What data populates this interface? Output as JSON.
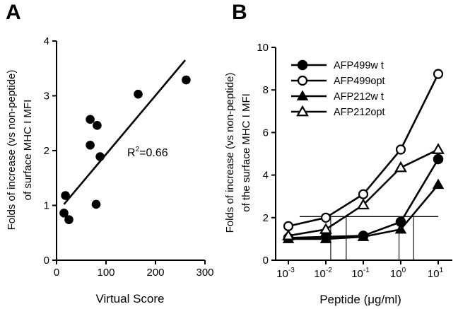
{
  "chart_data": [
    {
      "panel": "A",
      "type": "scatter",
      "xlabel": "Virtual Score",
      "ylabel_lines": [
        "Folds of increase (vs non-peptide)",
        "of surface MHC I MFI"
      ],
      "xlim": [
        0,
        300
      ],
      "ylim": [
        0,
        4
      ],
      "xticks": [
        "0",
        "100",
        "200",
        "300"
      ],
      "yticks": [
        "0",
        "1",
        "2",
        "3",
        "4"
      ],
      "points": [
        {
          "x": 15,
          "y": 0.86
        },
        {
          "x": 18,
          "y": 1.18
        },
        {
          "x": 25,
          "y": 0.74
        },
        {
          "x": 68,
          "y": 2.57
        },
        {
          "x": 68,
          "y": 2.1
        },
        {
          "x": 80,
          "y": 1.02
        },
        {
          "x": 82,
          "y": 2.46
        },
        {
          "x": 88,
          "y": 1.89
        },
        {
          "x": 165,
          "y": 3.03
        },
        {
          "x": 262,
          "y": 3.29
        }
      ],
      "fit_line": {
        "x": [
          15,
          260
        ],
        "y": [
          1.02,
          3.65
        ]
      },
      "annotation": {
        "text": "R",
        "sup": "2",
        "rest": "=0.66"
      }
    },
    {
      "panel": "B",
      "type": "line",
      "xlabel_prefix": "Peptide (",
      "xlabel_mu": "μ",
      "xlabel_suffix": "g/ml)",
      "ylabel_lines": [
        "Folds of increase (vs non-peptide)",
        "of the surface MHC I MFI"
      ],
      "x_scale": "log",
      "x": [
        0.001,
        0.01,
        0.1,
        1,
        10
      ],
      "xtick_base": [
        "10",
        "10",
        "10",
        "10",
        "10"
      ],
      "xtick_exp": [
        "-3",
        "-2",
        "-1",
        "0",
        "1"
      ],
      "ylim": [
        0,
        10
      ],
      "yticks": [
        "0",
        "2",
        "4",
        "6",
        "8",
        "10"
      ],
      "series": [
        {
          "name": "AFP499w t",
          "marker": "circle-filled",
          "values": [
            1.05,
            1.1,
            1.15,
            1.8,
            4.75
          ]
        },
        {
          "name": "AFP499opt",
          "marker": "circle-open",
          "values": [
            1.6,
            2.0,
            3.1,
            5.2,
            8.75
          ]
        },
        {
          "name": "AFP212w t",
          "marker": "triangle-filled",
          "values": [
            1.0,
            1.0,
            1.1,
            1.45,
            3.55
          ]
        },
        {
          "name": "AFP212opt",
          "marker": "triangle-open",
          "values": [
            1.15,
            1.45,
            2.6,
            4.35,
            5.2
          ]
        }
      ],
      "reference_line": {
        "y": 2.05,
        "x_from": 0.002,
        "x_to": 10
      },
      "drop_lines_x": [
        0.0135,
        0.035,
        0.9,
        2.2
      ]
    }
  ]
}
